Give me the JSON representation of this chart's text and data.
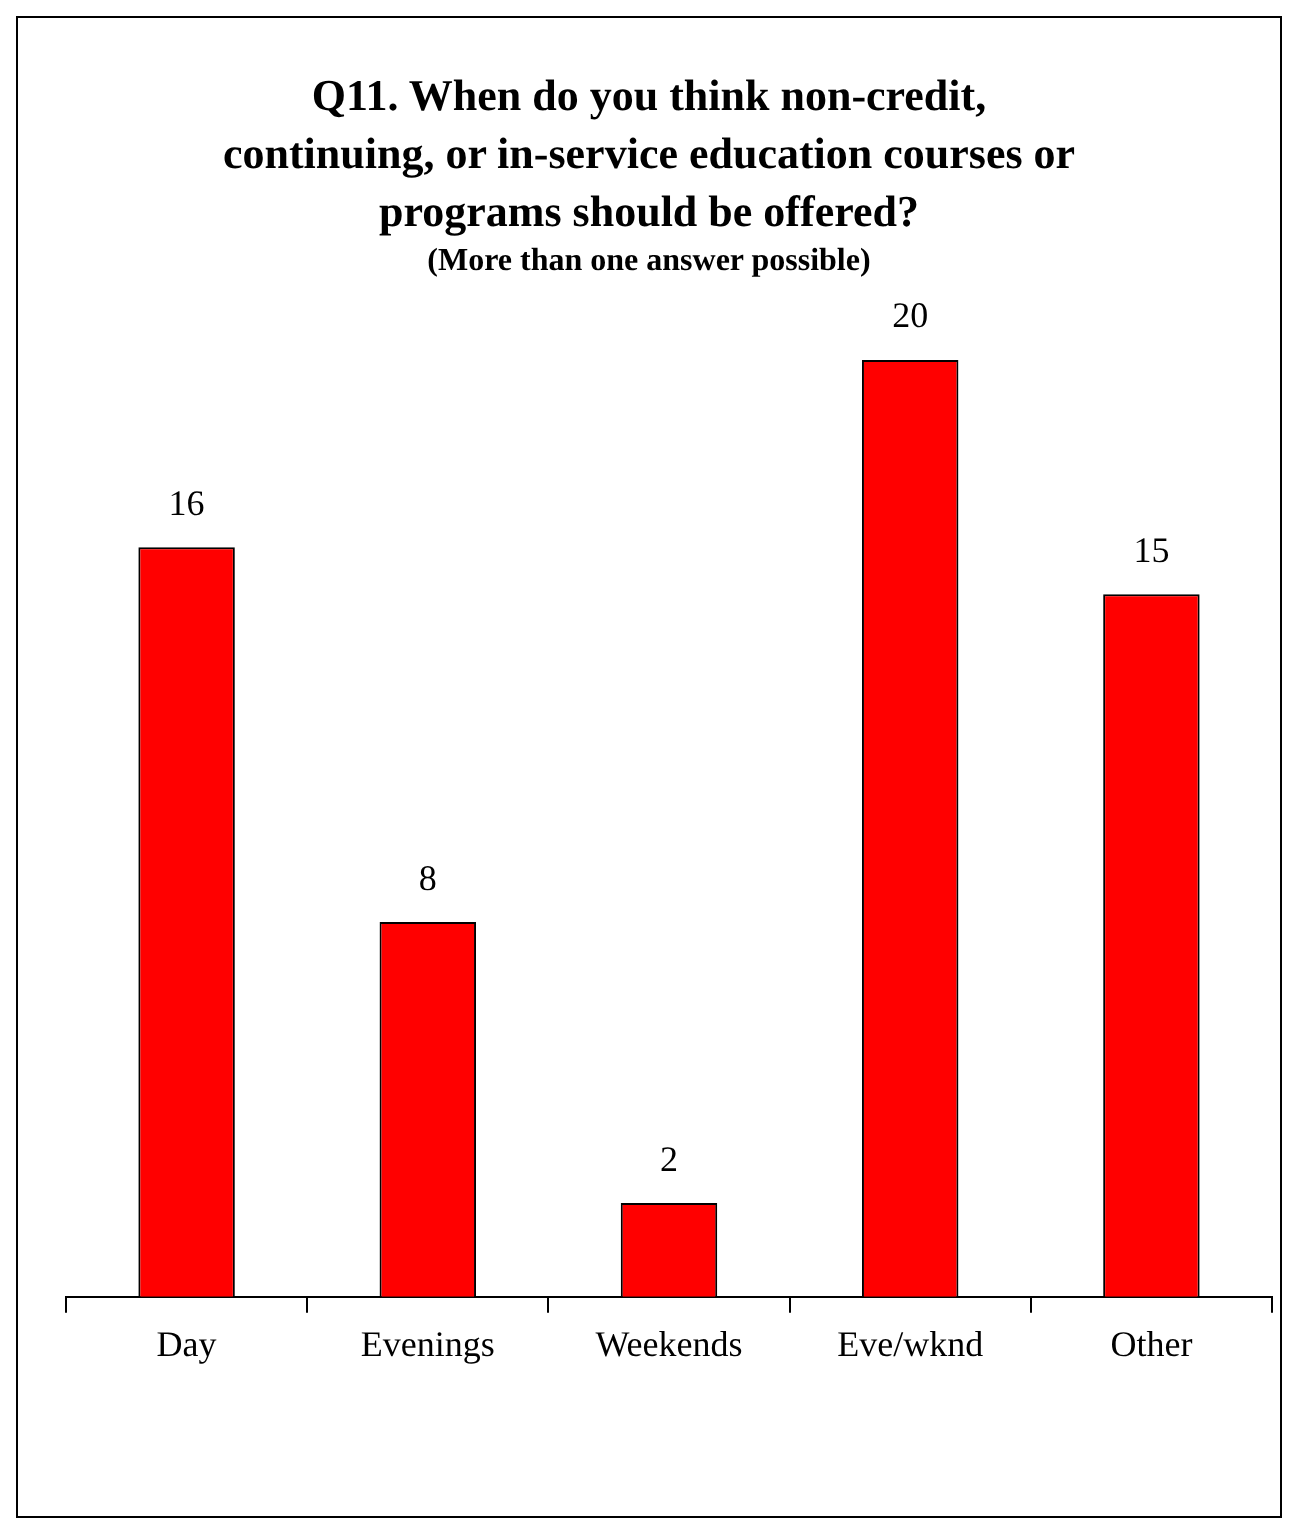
{
  "chart_data": {
    "type": "bar",
    "title": "Q11. When do you think non-credit, continuing, or in-service education courses or programs should be offered?",
    "subtitle": "(More than one answer possible)",
    "categories": [
      "Day",
      "Evenings",
      "Weekends",
      "Eve/wknd",
      "Other"
    ],
    "values": [
      16,
      8,
      2,
      20,
      15
    ],
    "color": "#ff0000",
    "data_labels": true,
    "grid": false,
    "legend": false
  }
}
